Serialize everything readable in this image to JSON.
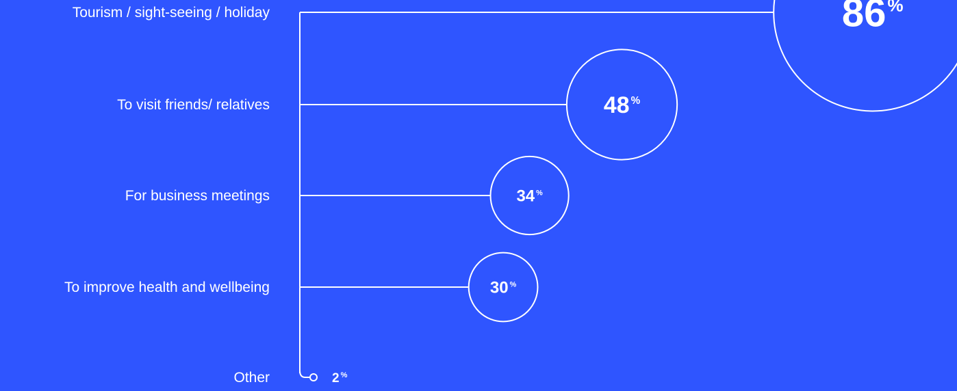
{
  "chart_data": {
    "type": "bubble",
    "categories": [
      "Tourism / sight-seeing / holiday",
      "To visit friends/ relatives",
      "For business meetings",
      "To improve health and wellbeing",
      "Other"
    ],
    "values": [
      86,
      48,
      34,
      30,
      2
    ],
    "value_suffix": "%",
    "xlim": [
      0,
      100
    ],
    "grid": false,
    "legend": "none"
  },
  "colors": {
    "background": "#2f55ff",
    "foreground": "#ffffff"
  }
}
